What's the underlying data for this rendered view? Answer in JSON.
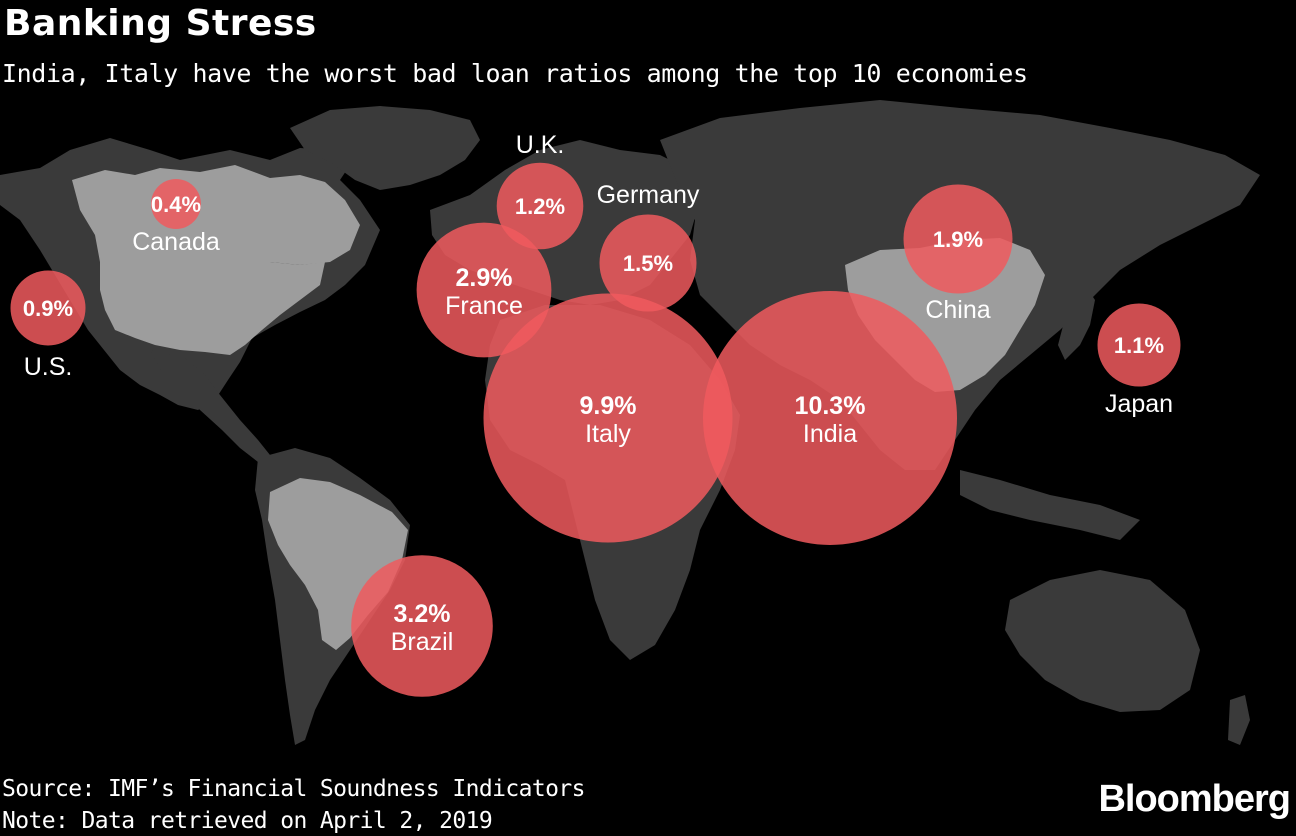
{
  "title": "Banking Stress",
  "subtitle": "India, Italy have the worst bad loan ratios among the top 10 economies",
  "footer": {
    "source": "Source: IMF’s Financial Soundness Indicators",
    "note": "Note: Data retrieved on April 2, 2019"
  },
  "brand": "Bloomberg",
  "colors": {
    "background": "#000000",
    "land": "#3a3a3a",
    "highlight_land": "#9d9d9d",
    "bubble": "#f05a5e"
  },
  "map_data": {
    "metric": "Bad loan ratio",
    "countries": [
      {
        "name": "U.S.",
        "value": 0.9,
        "label": "0.9%"
      },
      {
        "name": "Canada",
        "value": 0.4,
        "label": "0.4%"
      },
      {
        "name": "U.K.",
        "value": 1.2,
        "label": "1.2%"
      },
      {
        "name": "Germany",
        "value": 1.5,
        "label": "1.5%"
      },
      {
        "name": "France",
        "value": 2.9,
        "label": "2.9%"
      },
      {
        "name": "Italy",
        "value": 9.9,
        "label": "9.9%"
      },
      {
        "name": "India",
        "value": 10.3,
        "label": "10.3%"
      },
      {
        "name": "China",
        "value": 1.9,
        "label": "1.9%"
      },
      {
        "name": "Japan",
        "value": 1.1,
        "label": "1.1%"
      },
      {
        "name": "Brazil",
        "value": 3.2,
        "label": "3.2%"
      }
    ]
  }
}
